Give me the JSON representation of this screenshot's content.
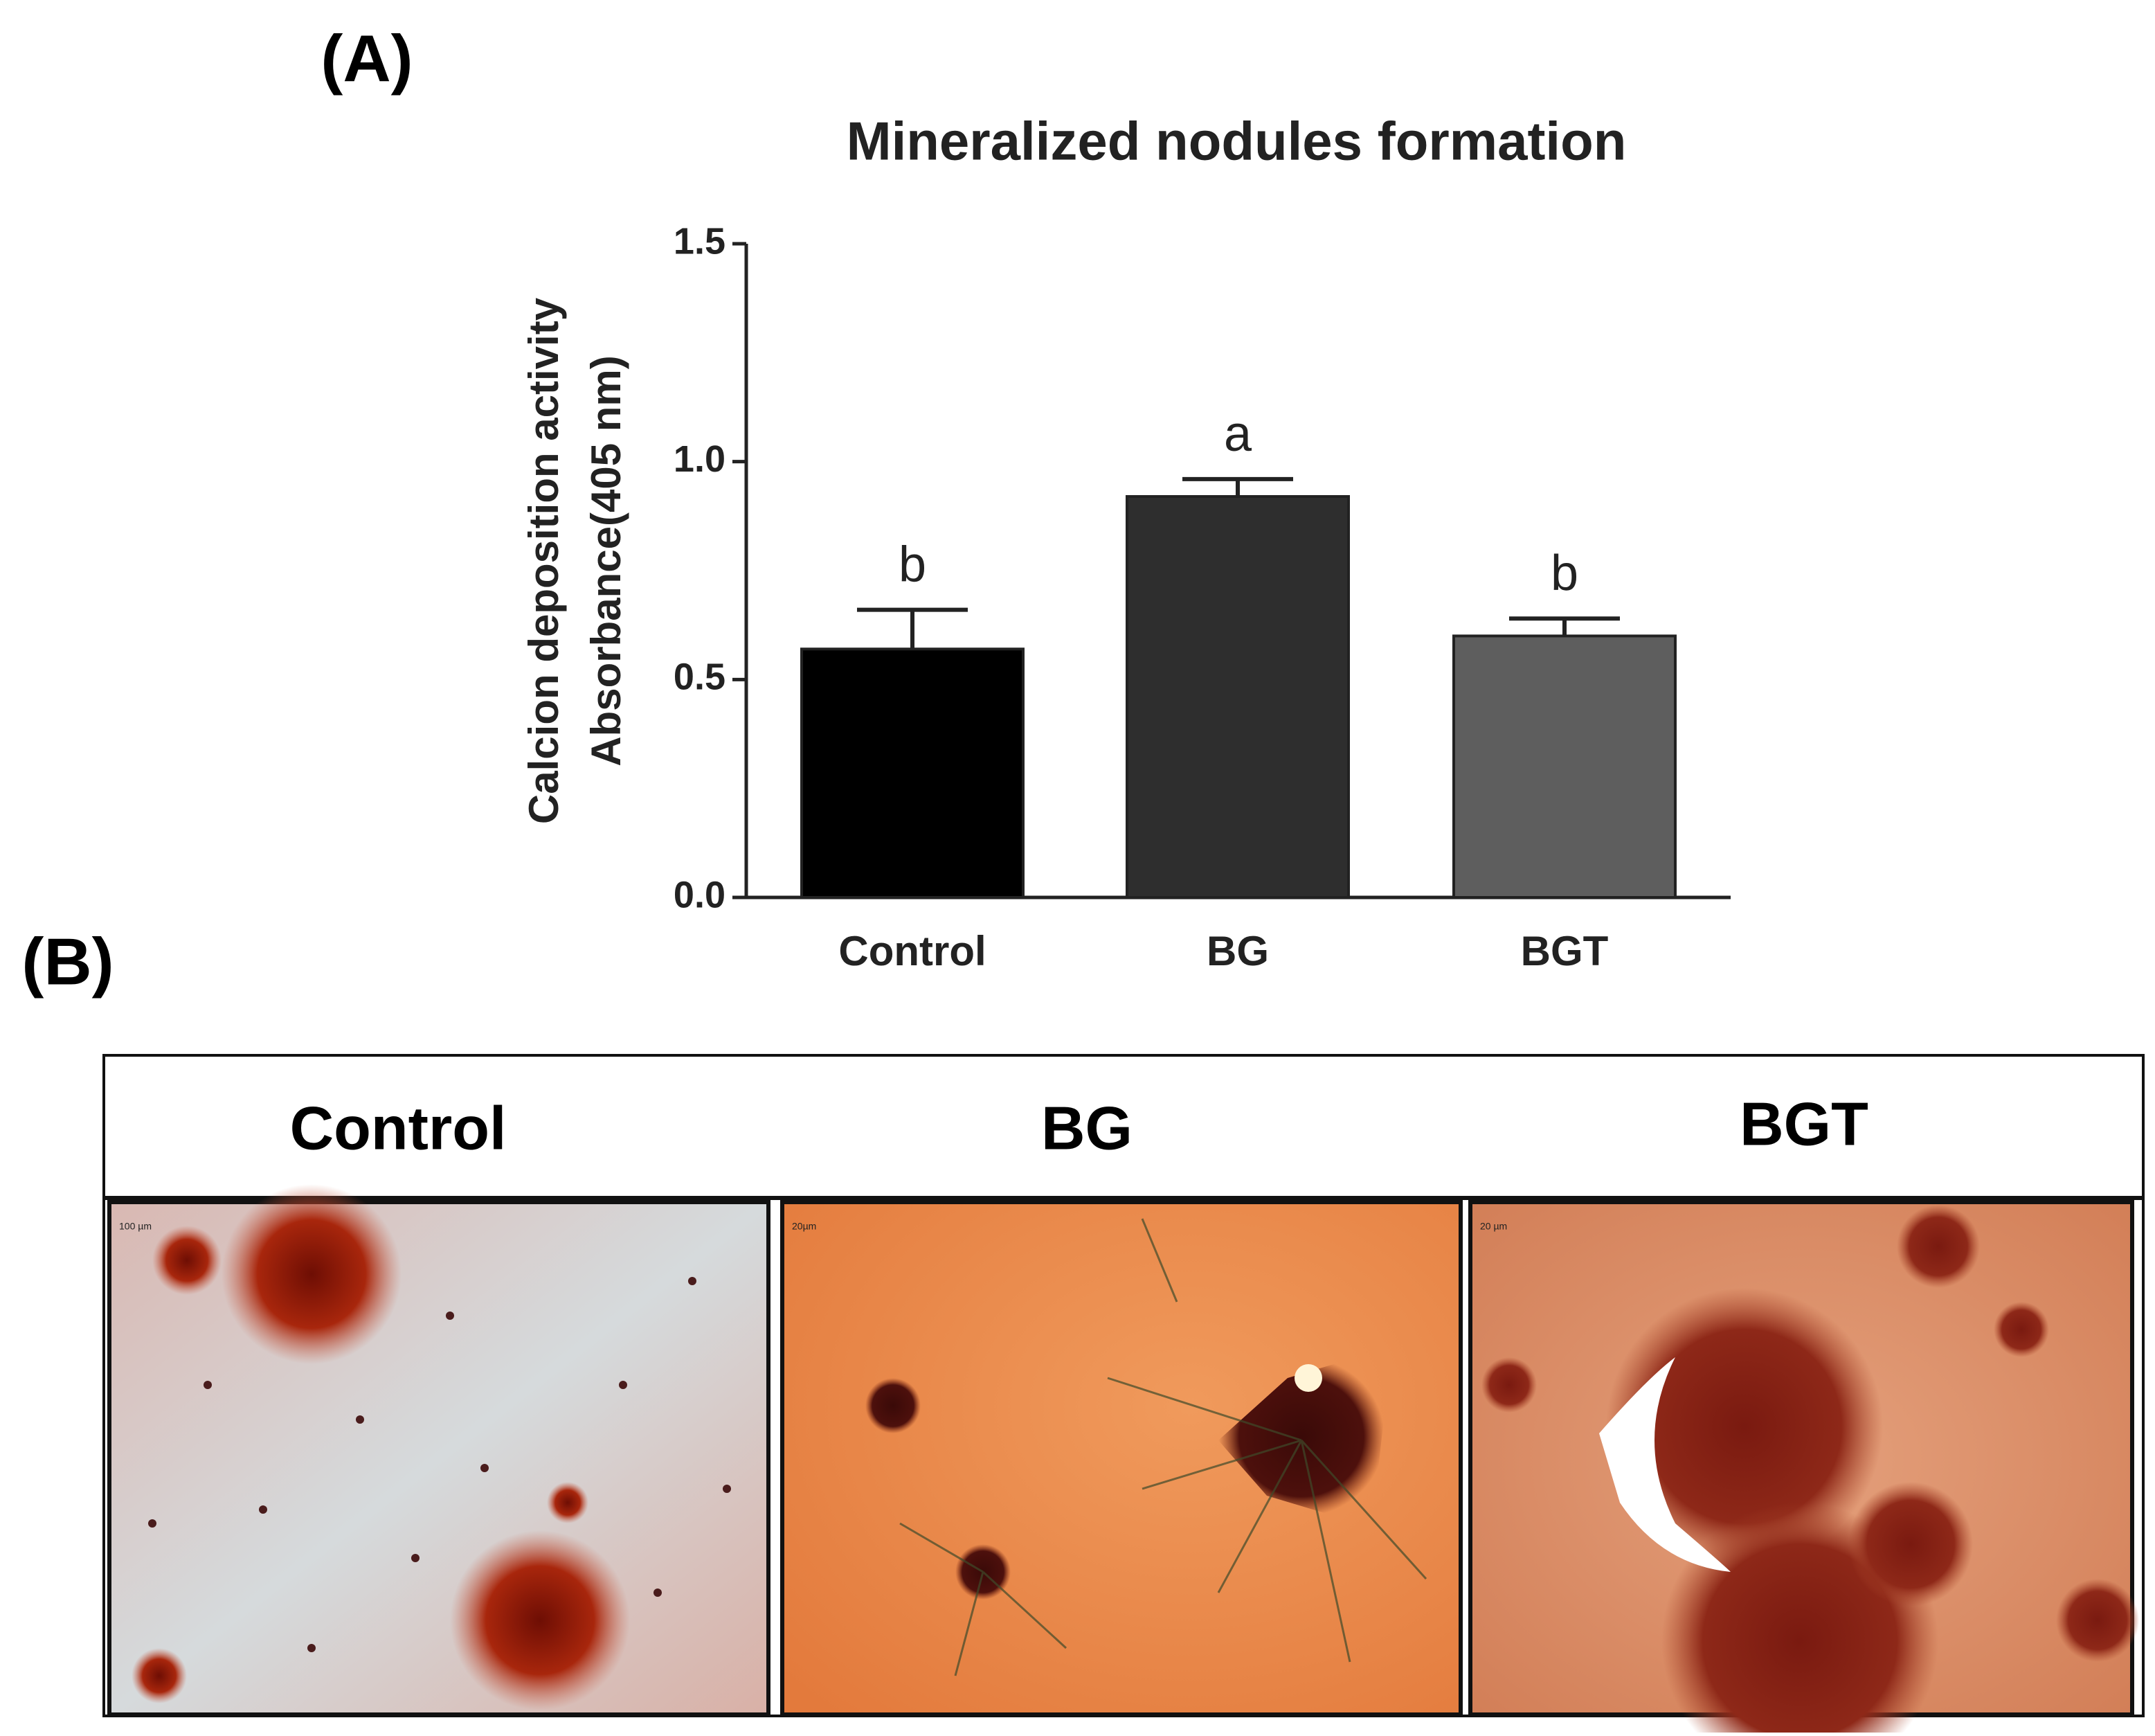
{
  "panel_labels": [
    "(A)",
    "(B)"
  ],
  "chart_data": {
    "type": "bar",
    "title": "Mineralized nodules formation",
    "y_label_lines": [
      "Calcion deposition activity",
      "Absorbance(405 nm)"
    ],
    "categories": [
      "Control",
      "BG",
      "BGT"
    ],
    "values": [
      0.57,
      0.92,
      0.6
    ],
    "errors": [
      0.09,
      0.04,
      0.04
    ],
    "significance": [
      "b",
      "a",
      "b"
    ],
    "colors": [
      "#000000",
      "#2e2e2e",
      "#5e5e5e"
    ],
    "ylim": [
      0,
      1.5
    ],
    "yticks": [
      {
        "value": 0,
        "label": "0.0"
      },
      {
        "value": 0.5,
        "label": "0.5"
      },
      {
        "value": 1,
        "label": "1.0"
      },
      {
        "value": 1.5,
        "label": "1.5"
      }
    ]
  },
  "micrographs": {
    "headers": [
      "Control",
      "BG",
      "BGT"
    ],
    "scale_bars": [
      "100 µm",
      "20µm",
      "20 µm"
    ]
  }
}
